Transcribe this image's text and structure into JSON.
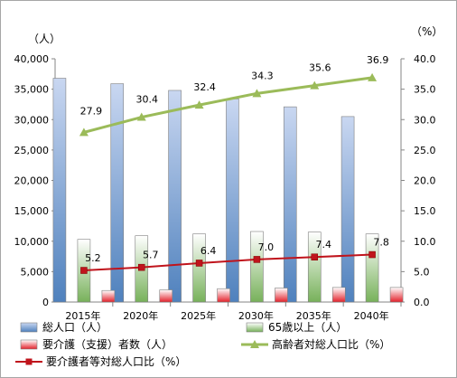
{
  "chart_data": {
    "type": "bar",
    "categories": [
      "2015年",
      "2020年",
      "2025年",
      "2030年",
      "2035年",
      "2040年"
    ],
    "y_left": {
      "unit": "（人）",
      "range": [
        0,
        40000
      ],
      "ticks": [
        "0",
        "5,000",
        "10,000",
        "15,000",
        "20,000",
        "25,000",
        "30,000",
        "35,000",
        "40,000"
      ]
    },
    "y_right": {
      "unit": "（%）",
      "range": [
        0,
        40
      ],
      "ticks": [
        "0.0",
        "5.0",
        "10.0",
        "15.0",
        "20.0",
        "25.0",
        "30.0",
        "35.0",
        "40.0"
      ]
    },
    "bar_series": [
      {
        "name": "総人口（人）",
        "values": [
          36800,
          35900,
          34800,
          33400,
          32100,
          30500
        ],
        "color_top": "#c9d7f1",
        "color_bottom": "#4f81bd"
      },
      {
        "name": "65歳以上（人）",
        "values": [
          10300,
          10900,
          11200,
          11600,
          11500,
          11200
        ],
        "color_top": "#ffffff",
        "color_bottom": "#77b15a"
      },
      {
        "name": "要介護（支援）者数（人）",
        "values": [
          1900,
          2000,
          2200,
          2300,
          2400,
          2400
        ],
        "color_top": "#ffffff",
        "color_bottom": "#e3202a"
      }
    ],
    "line_series": [
      {
        "name": "高齢者対総人口比（%）",
        "values": [
          27.9,
          30.4,
          32.4,
          34.3,
          35.6,
          36.9
        ],
        "labels": [
          "27.9",
          "30.4",
          "32.4",
          "34.3",
          "35.6",
          "36.9"
        ],
        "color": "#9bbb59",
        "marker": "triangle"
      },
      {
        "name": "要介護者等対総人口比（%）",
        "values": [
          5.2,
          5.7,
          6.4,
          7.0,
          7.4,
          7.8
        ],
        "labels": [
          "5.2",
          "5.7",
          "6.4",
          "7.0",
          "7.4",
          "7.8"
        ],
        "color": "#c0141c",
        "marker": "square"
      }
    ],
    "grid": false,
    "legend_position": "bottom"
  }
}
